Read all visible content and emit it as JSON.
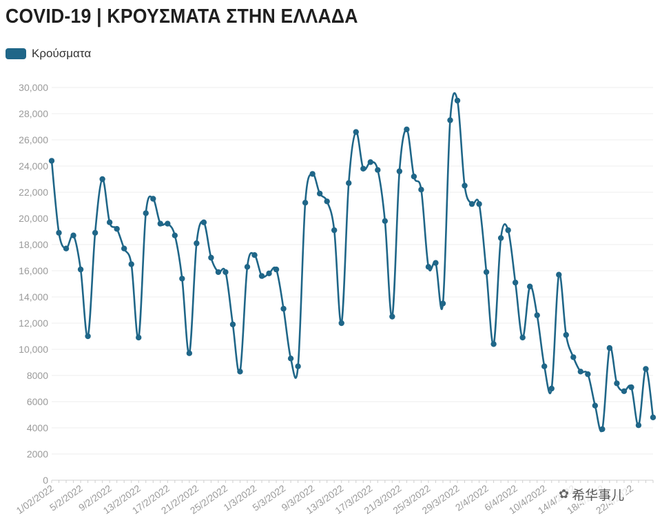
{
  "header": {
    "title": "COVID-19 | ΚΡΟΥΣΜΑΤΑ ΣΤΗΝ ΕΛΛΑΔΑ"
  },
  "legend": {
    "label": "Κρούσματα",
    "color": "#1f6688"
  },
  "watermark": {
    "text": "希华事儿",
    "icon": "wechat-icon"
  },
  "chart_data": {
    "type": "line",
    "title": "COVID-19 | ΚΡΟΥΣΜΑΤΑ ΣΤΗΝ ΕΛΛΑΔΑ",
    "xlabel": "",
    "ylabel": "",
    "ylim": [
      0,
      30000
    ],
    "grid": true,
    "legend_position": "top-left",
    "y_ticks": [
      "0",
      "2000",
      "4000",
      "6000",
      "8000",
      "10,000",
      "12,000",
      "14,000",
      "16,000",
      "18,000",
      "20,000",
      "22,000",
      "24,000",
      "26,000",
      "28,000",
      "30,000"
    ],
    "x_tick_labels": [
      {
        "label": "1/02/2022",
        "index": 0
      },
      {
        "label": "5/2/2022",
        "index": 4
      },
      {
        "label": "9/2/2022",
        "index": 8
      },
      {
        "label": "13/2/2022",
        "index": 12
      },
      {
        "label": "17/2/2022",
        "index": 16
      },
      {
        "label": "21/2/2022",
        "index": 20
      },
      {
        "label": "25/2/2022",
        "index": 24
      },
      {
        "label": "1/3/2022",
        "index": 28
      },
      {
        "label": "5/3/2022",
        "index": 32
      },
      {
        "label": "9/3/2022",
        "index": 36
      },
      {
        "label": "13/3/2022",
        "index": 40
      },
      {
        "label": "17/3/2022",
        "index": 44
      },
      {
        "label": "21/3/2022",
        "index": 48
      },
      {
        "label": "25/3/2022",
        "index": 52
      },
      {
        "label": "29/3/2022",
        "index": 56
      },
      {
        "label": "2/4/2022",
        "index": 60
      },
      {
        "label": "6/4/2022",
        "index": 64
      },
      {
        "label": "10/4/2022",
        "index": 68
      },
      {
        "label": "14/4/2022",
        "index": 72
      },
      {
        "label": "18/4/2022",
        "index": 76
      },
      {
        "label": "22/4/2022",
        "index": 80
      }
    ],
    "series": [
      {
        "name": "Κρούσματα",
        "color": "#1f6688",
        "values": [
          24400,
          18900,
          17700,
          18700,
          16100,
          11000,
          18900,
          23000,
          19700,
          19200,
          17700,
          16500,
          10900,
          20400,
          21500,
          19600,
          19600,
          18700,
          15400,
          9700,
          18100,
          19700,
          17000,
          15900,
          15900,
          11900,
          8300,
          16300,
          17200,
          15600,
          15800,
          16100,
          13100,
          9300,
          8700,
          21200,
          23400,
          21900,
          21300,
          19100,
          12000,
          22700,
          26600,
          23800,
          24300,
          23700,
          19800,
          12500,
          23600,
          26800,
          23200,
          22200,
          16300,
          16600,
          13500,
          27500,
          29000,
          22500,
          21100,
          21100,
          15900,
          10400,
          18500,
          19100,
          15100,
          10900,
          14800,
          12600,
          8700,
          7000,
          15700,
          11100,
          9400,
          8300,
          8100,
          5700,
          3900,
          10100,
          7400,
          6800,
          7100,
          4200,
          8500,
          4800
        ]
      }
    ]
  }
}
